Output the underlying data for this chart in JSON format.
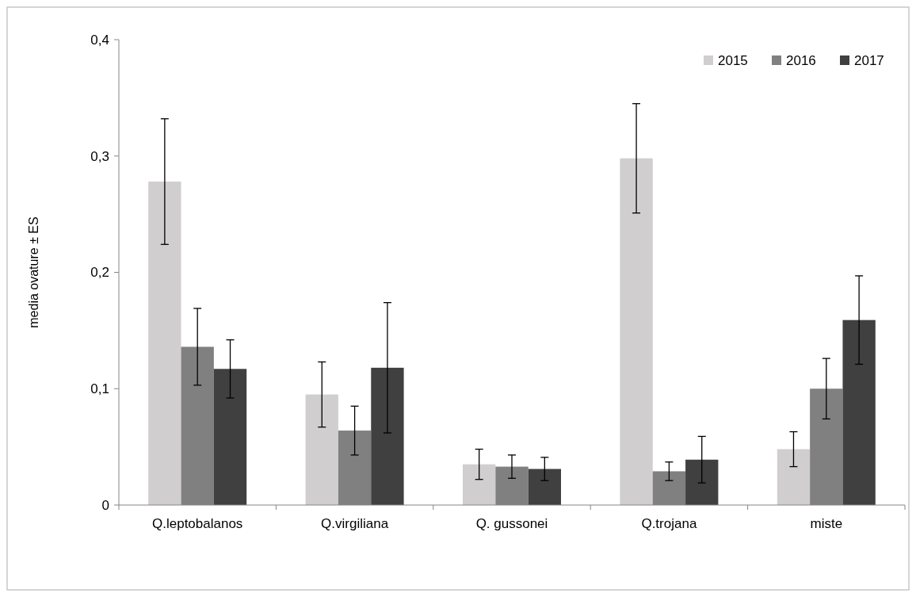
{
  "chart_data": {
    "type": "bar",
    "ylabel": "media ovature ± ES",
    "categories": [
      "Q.leptobalanos",
      "Q.virgiliana",
      "Q. gussonei",
      "Q.trojana",
      "miste"
    ],
    "series": [
      {
        "name": "2015",
        "color": "#d0cecf",
        "values": [
          0.278,
          0.095,
          0.035,
          0.298,
          0.048
        ],
        "errors": [
          0.054,
          0.028,
          0.013,
          0.047,
          0.015
        ]
      },
      {
        "name": "2016",
        "color": "#808080",
        "values": [
          0.136,
          0.064,
          0.033,
          0.029,
          0.1
        ],
        "errors": [
          0.033,
          0.021,
          0.01,
          0.008,
          0.026
        ]
      },
      {
        "name": "2017",
        "color": "#404040",
        "values": [
          0.117,
          0.118,
          0.031,
          0.039,
          0.159
        ],
        "errors": [
          0.025,
          0.056,
          0.01,
          0.02,
          0.038
        ]
      }
    ],
    "ylim": [
      0,
      0.4
    ],
    "yticks": [
      {
        "value": 0,
        "label": "0"
      },
      {
        "value": 0.1,
        "label": "0,1"
      },
      {
        "value": 0.2,
        "label": "0,2"
      },
      {
        "value": 0.3,
        "label": "0,3"
      },
      {
        "value": 0.4,
        "label": "0,4"
      }
    ],
    "grid": false,
    "legend": "top right"
  }
}
